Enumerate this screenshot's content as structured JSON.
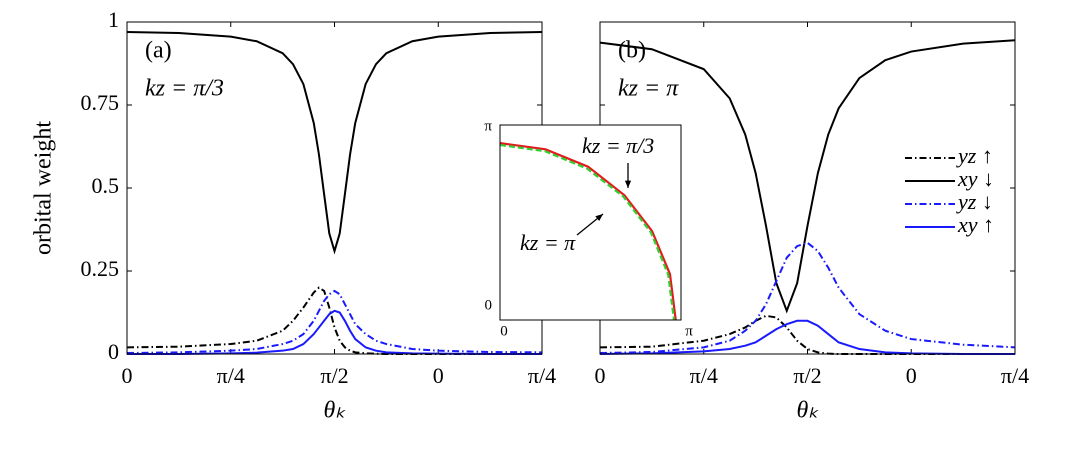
{
  "chart_data": [
    {
      "type": "line",
      "panel_label": "(a)",
      "subtitle": "kz = π/3",
      "ylabel": "orbital weight",
      "xlabel": "θₖ",
      "xlim": [
        0,
        4
      ],
      "xticks": [
        0,
        {
          "value": 1,
          "label": "π/4"
        },
        {
          "value": 2,
          "label": "π/2"
        },
        {
          "value": 3,
          "label": "0"
        },
        {
          "value": 4,
          "label": "π/4"
        }
      ],
      "ylim": [
        0,
        1
      ],
      "yticks": [
        0,
        0.25,
        0.5,
        0.75,
        1
      ],
      "x": [
        0,
        0.5,
        1,
        1.25,
        1.5,
        1.6,
        1.7,
        1.8,
        1.85,
        1.9,
        1.95,
        2,
        2.05,
        2.1,
        2.15,
        2.2,
        2.3,
        2.4,
        2.5,
        2.75,
        3,
        3.5,
        4
      ],
      "series": [
        {
          "color": "#000000",
          "dash": "dashdot",
          "values": [
            0.02,
            0.022,
            0.03,
            0.04,
            0.07,
            0.1,
            0.14,
            0.185,
            0.2,
            0.19,
            0.14,
            0.08,
            0.04,
            0.02,
            0.01,
            0.005,
            0.002,
            0.001,
            0,
            0,
            0,
            0,
            0
          ]
        },
        {
          "color": "#000000",
          "dash": "solid",
          "values": [
            0.97,
            0.967,
            0.956,
            0.942,
            0.906,
            0.873,
            0.813,
            0.696,
            0.601,
            0.481,
            0.363,
            0.31,
            0.363,
            0.481,
            0.601,
            0.696,
            0.813,
            0.873,
            0.906,
            0.942,
            0.956,
            0.967,
            0.97
          ]
        },
        {
          "color": "#1a1aff",
          "dash": "dashdot",
          "values": [
            0.003,
            0.005,
            0.01,
            0.015,
            0.03,
            0.04,
            0.06,
            0.1,
            0.13,
            0.16,
            0.18,
            0.19,
            0.18,
            0.15,
            0.12,
            0.09,
            0.06,
            0.04,
            0.03,
            0.015,
            0.01,
            0.006,
            0.005
          ]
        },
        {
          "color": "#1a1aff",
          "dash": "solid",
          "values": [
            0,
            0,
            0.002,
            0.004,
            0.01,
            0.015,
            0.03,
            0.06,
            0.08,
            0.1,
            0.12,
            0.13,
            0.125,
            0.1,
            0.07,
            0.045,
            0.02,
            0.01,
            0.005,
            0.002,
            0.001,
            0,
            0
          ]
        }
      ]
    },
    {
      "type": "line",
      "panel_label": "(b)",
      "subtitle": "kz = π",
      "xlabel": "θₖ",
      "legend": "right",
      "show_ytick_labels": false,
      "xlim": [
        0,
        4
      ],
      "xticks": [
        0,
        {
          "value": 1,
          "label": "π/4"
        },
        {
          "value": 2,
          "label": "π/2"
        },
        {
          "value": 3,
          "label": "0"
        },
        {
          "value": 4,
          "label": "π/4"
        }
      ],
      "ylim": [
        0,
        1
      ],
      "yticks": [
        0,
        0.25,
        0.5,
        0.75,
        1
      ],
      "x": [
        0,
        0.5,
        1,
        1.25,
        1.4,
        1.5,
        1.6,
        1.7,
        1.8,
        1.9,
        2,
        2.1,
        2.2,
        2.3,
        2.5,
        2.75,
        3,
        3.5,
        4
      ],
      "series": [
        {
          "name": "yz ↑",
          "color": "#000000",
          "dash": "dashdot",
          "values": [
            0.02,
            0.022,
            0.04,
            0.06,
            0.08,
            0.1,
            0.115,
            0.11,
            0.08,
            0.04,
            0.015,
            0.005,
            0.001,
            0,
            0,
            0,
            0,
            0,
            0
          ]
        },
        {
          "name": "xy ↓",
          "color": "#000000",
          "dash": "solid",
          "values": [
            0.938,
            0.918,
            0.858,
            0.77,
            0.661,
            0.545,
            0.386,
            0.213,
            0.13,
            0.213,
            0.386,
            0.545,
            0.661,
            0.74,
            0.831,
            0.885,
            0.911,
            0.935,
            0.945
          ]
        },
        {
          "name": "yz ↓",
          "color": "#1a1aff",
          "dash": "dashdot",
          "values": [
            0.003,
            0.006,
            0.02,
            0.04,
            0.07,
            0.1,
            0.15,
            0.22,
            0.29,
            0.325,
            0.335,
            0.31,
            0.26,
            0.2,
            0.12,
            0.07,
            0.045,
            0.028,
            0.02
          ]
        },
        {
          "name": "xy ↑",
          "color": "#1a1aff",
          "dash": "solid",
          "values": [
            0,
            0.002,
            0.008,
            0.015,
            0.025,
            0.035,
            0.055,
            0.075,
            0.09,
            0.1,
            0.1,
            0.085,
            0.06,
            0.035,
            0.015,
            0.005,
            0.002,
            0,
            0
          ]
        }
      ]
    },
    {
      "type": "line",
      "annotations": [
        "kz = π/3",
        "kz = π"
      ],
      "xlim": [
        0,
        3.1416
      ],
      "xticks": [
        0,
        {
          "value": 3.1416,
          "label": "π"
        }
      ],
      "ylim": [
        0,
        3.1416
      ],
      "yticks": [
        0,
        {
          "value": 3.1416,
          "label": "π"
        }
      ],
      "series": [
        {
          "color": "#e41a1c",
          "dash": "solid",
          "x": [
            0,
            0.79,
            1.53,
            2.16,
            2.64,
            2.95,
            3.05
          ],
          "values": [
            2.85,
            2.75,
            2.47,
            2.01,
            1.43,
            0.74,
            0
          ]
        },
        {
          "color": "#33cc33",
          "dash": "dashed",
          "x": [
            0,
            0.78,
            1.51,
            2.14,
            2.62,
            2.92,
            3.02
          ],
          "values": [
            2.82,
            2.72,
            2.44,
            1.99,
            1.41,
            0.73,
            0
          ]
        }
      ]
    }
  ]
}
